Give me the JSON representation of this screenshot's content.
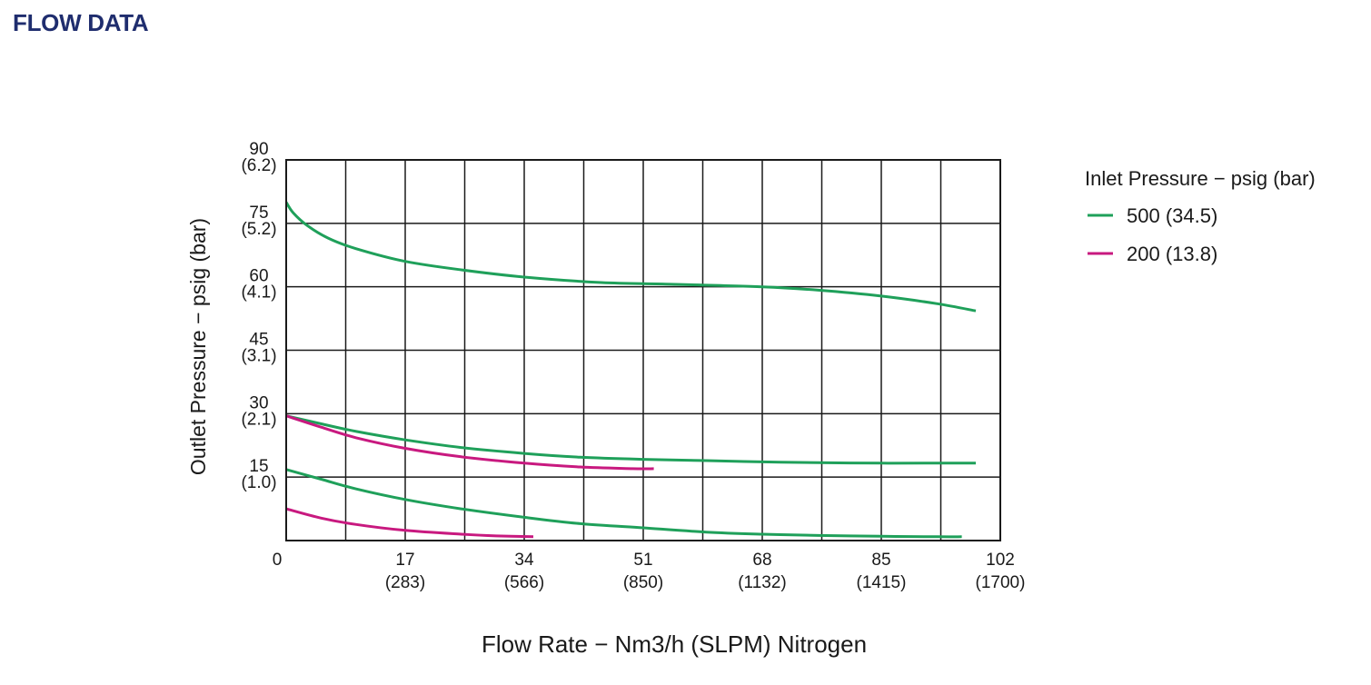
{
  "page": {
    "title": "FLOW DATA"
  },
  "chart_data": {
    "type": "line",
    "title": "",
    "xlabel": "Flow Rate  −  Nm3/h (SLPM) Nitrogen",
    "ylabel": "Outlet Pressure  −  psig (bar)",
    "xlim": [
      0,
      102
    ],
    "ylim": [
      0,
      90
    ],
    "x_gridlines": [
      0,
      8.5,
      17,
      25.5,
      34,
      42.5,
      51,
      59.5,
      68,
      76.5,
      85,
      93.5,
      102
    ],
    "y_gridlines": [
      0,
      15,
      30,
      45,
      60,
      75,
      90
    ],
    "grid": true,
    "x_ticks": [
      {
        "value": 0,
        "label": "0",
        "sublabel": ""
      },
      {
        "value": 17,
        "label": "17",
        "sublabel": "(283)"
      },
      {
        "value": 34,
        "label": "34",
        "sublabel": "(566)"
      },
      {
        "value": 51,
        "label": "51",
        "sublabel": "(850)"
      },
      {
        "value": 68,
        "label": "68",
        "sublabel": "(1132)"
      },
      {
        "value": 85,
        "label": "85",
        "sublabel": "(1415)"
      },
      {
        "value": 102,
        "label": "102",
        "sublabel": "(1700)"
      }
    ],
    "y_ticks": [
      {
        "value": 90,
        "label": "90",
        "sublabel": "(6.2)"
      },
      {
        "value": 75,
        "label": "75",
        "sublabel": "(5.2)"
      },
      {
        "value": 60,
        "label": "60",
        "sublabel": "(4.1)"
      },
      {
        "value": 45,
        "label": "45",
        "sublabel": "(3.1)"
      },
      {
        "value": 30,
        "label": "30",
        "sublabel": "(2.1)"
      },
      {
        "value": 15,
        "label": "15",
        "sublabel": "(1.0)"
      }
    ],
    "legend": {
      "title": "Inlet Pressure  −  psig (bar)",
      "position": "right",
      "entries": [
        {
          "name": "500 (34.5)",
          "color": "#1fa05a"
        },
        {
          "name": "200 (13.8)",
          "color": "#c8197f"
        }
      ]
    },
    "series": [
      {
        "name": "500 (34.5)",
        "color": "#1fa05a",
        "x": [
          0,
          1,
          3,
          6,
          10,
          17,
          25,
          34,
          45,
          55,
          68,
          76,
          85,
          93,
          98.5
        ],
        "y": [
          80,
          77.5,
          74.5,
          71.5,
          69,
          66,
          64,
          62.3,
          61,
          60.6,
          60,
          59.2,
          57.8,
          56,
          54.3
        ]
      },
      {
        "name": "500 (34.5)",
        "color": "#1fa05a",
        "x": [
          0,
          5,
          10,
          17,
          25,
          34,
          42,
          51,
          60,
          68,
          76,
          85,
          93,
          98.5
        ],
        "y": [
          29.5,
          27.6,
          25.8,
          23.8,
          22,
          20.6,
          19.7,
          19.2,
          18.9,
          18.6,
          18.4,
          18.3,
          18.3,
          18.3
        ]
      },
      {
        "name": "200 (13.8)",
        "color": "#c8197f",
        "x": [
          0,
          5,
          10,
          17,
          25,
          34,
          42,
          49.5,
          52.5
        ],
        "y": [
          29.5,
          26.8,
          24.3,
          21.8,
          19.8,
          18.3,
          17.4,
          17,
          17
        ]
      },
      {
        "name": "500 (34.5)",
        "color": "#1fa05a",
        "x": [
          0,
          5,
          10,
          17,
          25,
          34,
          42,
          51,
          60,
          68,
          76,
          85,
          93,
          96.5
        ],
        "y": [
          16.8,
          14.5,
          12.2,
          9.7,
          7.5,
          5.5,
          4,
          3,
          2,
          1.5,
          1.2,
          1,
          0.9,
          0.9
        ]
      },
      {
        "name": "200 (13.8)",
        "color": "#c8197f",
        "x": [
          0,
          5,
          10,
          17,
          25,
          30,
          35.3
        ],
        "y": [
          7.5,
          5.3,
          3.8,
          2.4,
          1.5,
          1.1,
          0.9
        ]
      }
    ]
  }
}
